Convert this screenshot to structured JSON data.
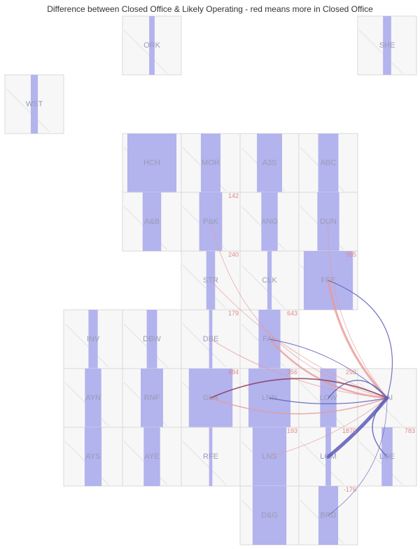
{
  "title": "Difference between Closed Office & Likely Operating - red means more in Closed Office",
  "colors": {
    "tile_bg": "#f7f7f7",
    "tile_border": "#d9d9d9",
    "bar": "#b3b3ee",
    "label": "#9a9ab8",
    "positive_flow": "#e89a9a",
    "negative_flow": "#5c5cb8",
    "number": "#e08a8a"
  },
  "tiles": [
    {
      "code": "ORK",
      "col": 2,
      "row": 0,
      "share": 0.1
    },
    {
      "code": "SHE",
      "col": 6,
      "row": 0,
      "share": 0.15
    },
    {
      "code": "WST",
      "col": 0,
      "row": 1,
      "share": 0.13
    },
    {
      "code": "HCH",
      "col": 2,
      "row": 2,
      "share": 0.9
    },
    {
      "code": "MOR",
      "col": 3,
      "row": 2,
      "share": 0.36
    },
    {
      "code": "A3S",
      "col": 4,
      "row": 2,
      "share": 0.46
    },
    {
      "code": "ABC",
      "col": 5,
      "row": 2,
      "share": 0.37
    },
    {
      "code": "A&B",
      "col": 2,
      "row": 3,
      "share": 0.34
    },
    {
      "code": "P&K",
      "col": 3,
      "row": 3,
      "share": 0.42
    },
    {
      "code": "ANG",
      "col": 4,
      "row": 3,
      "share": 0.3
    },
    {
      "code": "DUN",
      "col": 5,
      "row": 3,
      "share": 0.4
    },
    {
      "code": "STR",
      "col": 3,
      "row": 4,
      "share": 0.16
    },
    {
      "code": "CLK",
      "col": 4,
      "row": 4,
      "share": 0.08
    },
    {
      "code": "FFE",
      "col": 5,
      "row": 4,
      "share": 0.9
    },
    {
      "code": "INV",
      "col": 1,
      "row": 5,
      "share": 0.17
    },
    {
      "code": "DBW",
      "col": 2,
      "row": 5,
      "share": 0.19
    },
    {
      "code": "DBE",
      "col": 3,
      "row": 5,
      "share": 0.06
    },
    {
      "code": "FAL",
      "col": 4,
      "row": 5,
      "share": 0.4
    },
    {
      "code": "AYN",
      "col": 1,
      "row": 6,
      "share": 0.3
    },
    {
      "code": "RNF",
      "col": 2,
      "row": 6,
      "share": 0.41
    },
    {
      "code": "GLA",
      "col": 3,
      "row": 6,
      "share": 0.8
    },
    {
      "code": "LNN",
      "col": 4,
      "row": 6,
      "share": 0.77
    },
    {
      "code": "LOW",
      "col": 5,
      "row": 6,
      "share": 0.3
    },
    {
      "code": "FAI",
      "col": 6,
      "row": 6,
      "share": 0.0
    },
    {
      "code": "AYS",
      "col": 1,
      "row": 7,
      "share": 0.31
    },
    {
      "code": "AYE",
      "col": 2,
      "row": 7,
      "share": 0.3
    },
    {
      "code": "RFE",
      "col": 3,
      "row": 7,
      "share": 0.06
    },
    {
      "code": "LNS",
      "col": 4,
      "row": 7,
      "share": 0.62
    },
    {
      "code": "LOM",
      "col": 5,
      "row": 7,
      "share": 0.1
    },
    {
      "code": "LOE",
      "col": 6,
      "row": 7,
      "share": 0.2
    },
    {
      "code": "D&G",
      "col": 4,
      "row": 8,
      "share": 0.62
    },
    {
      "code": "BRD",
      "col": 5,
      "row": 8,
      "share": 0.36
    }
  ],
  "labels": [
    {
      "text": "142",
      "col": 3,
      "row": 3
    },
    {
      "text": "955",
      "col": 5,
      "row": 4
    },
    {
      "text": "240",
      "col": 3,
      "row": 4
    },
    {
      "text": "179",
      "col": 3,
      "row": 5
    },
    {
      "text": "643",
      "col": 4,
      "row": 5
    },
    {
      "text": "484",
      "col": 3,
      "row": 6
    },
    {
      "text": "356",
      "col": 4,
      "row": 6
    },
    {
      "text": "292",
      "col": 5,
      "row": 6
    },
    {
      "text": "193",
      "col": 4,
      "row": 7
    },
    {
      "text": "1870",
      "col": 5,
      "row": 7
    },
    {
      "text": "783",
      "col": 6,
      "row": 7
    },
    {
      "text": "-176",
      "col": 5,
      "row": 8
    }
  ],
  "flows": [
    {
      "from": "FFE",
      "to": "FAI",
      "width": 3.2,
      "sign": "pos",
      "bend": 0.15
    },
    {
      "from": "FFE",
      "to": "FAI",
      "width": 1.2,
      "sign": "neg",
      "bend": -0.45
    },
    {
      "from": "FAL",
      "to": "FAI",
      "width": 2.4,
      "sign": "pos",
      "bend": 0.2
    },
    {
      "from": "DBE",
      "to": "FAI",
      "width": 1.0,
      "sign": "pos",
      "bend": 0.12
    },
    {
      "from": "STR",
      "to": "FAI",
      "width": 0.8,
      "sign": "pos",
      "bend": 0.12
    },
    {
      "from": "P&K",
      "to": "FAI",
      "width": 0.8,
      "sign": "pos",
      "bend": 0.3
    },
    {
      "from": "DUN",
      "to": "FAI",
      "width": 0.8,
      "sign": "pos",
      "bend": 0.18
    },
    {
      "from": "GLA",
      "to": "FAI",
      "width": 1.6,
      "sign": "pos",
      "bend": 0.18
    },
    {
      "from": "GLA",
      "to": "FAI",
      "width": 1.6,
      "sign": "mix",
      "bend": -0.22
    },
    {
      "from": "FAL",
      "to": "FAI",
      "width": 0.9,
      "sign": "neg",
      "bend": -0.15
    },
    {
      "from": "LNN",
      "to": "FAI",
      "width": 1.2,
      "sign": "neg",
      "bend": 0.1
    },
    {
      "from": "LOW",
      "to": "FAI",
      "width": 1.4,
      "sign": "neg",
      "bend": -0.6
    },
    {
      "from": "LNS",
      "to": "FAI",
      "width": 0.8,
      "sign": "pos",
      "bend": 0.1
    },
    {
      "from": "LOM",
      "to": "FAI",
      "width": 5.0,
      "sign": "neg",
      "bend": 0.05
    },
    {
      "from": "LOE",
      "to": "FAI",
      "width": 1.4,
      "sign": "neg",
      "bend": -0.5
    },
    {
      "from": "BRD",
      "to": "FAI",
      "width": 0.7,
      "sign": "neg",
      "bend": 0.25
    }
  ]
}
